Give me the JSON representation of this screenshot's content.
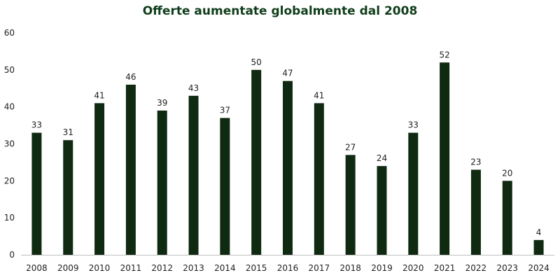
{
  "chart_data": {
    "type": "bar",
    "title": "Offerte aumentate globalmente dal 2008",
    "xlabel": "",
    "ylabel": "",
    "categories": [
      "2008",
      "2009",
      "2010",
      "2011",
      "2012",
      "2013",
      "2014",
      "2015",
      "2016",
      "2017",
      "2018",
      "2019",
      "2020",
      "2021",
      "2022",
      "2023",
      "2024"
    ],
    "values": [
      33,
      31,
      41,
      46,
      39,
      43,
      37,
      50,
      47,
      41,
      27,
      24,
      33,
      52,
      23,
      20,
      4
    ],
    "ylim": [
      0,
      60
    ],
    "yticks": [
      0,
      10,
      20,
      30,
      40,
      50,
      60
    ],
    "grid": false,
    "legend": "none",
    "bar_color": "#0f2a10",
    "title_color": "#0f3d1a"
  }
}
